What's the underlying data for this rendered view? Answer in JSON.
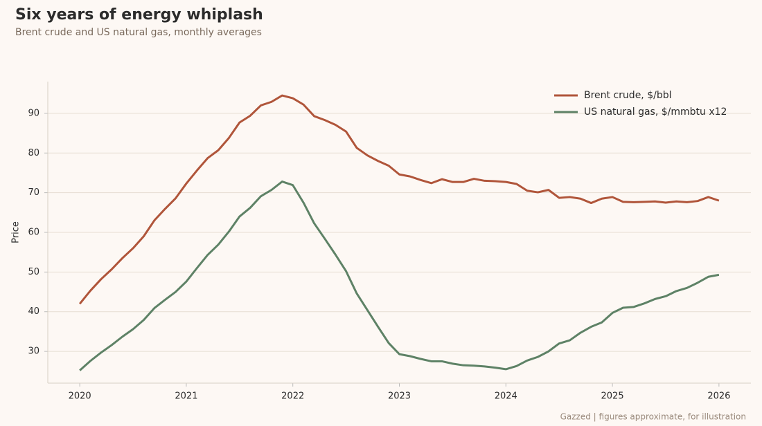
{
  "chart_data": {
    "type": "line",
    "title": "Six years of energy whiplash",
    "subtitle": "Brent crude and US natural gas, monthly averages",
    "ylabel": "Price",
    "footer": "Gazzed | figures approximate, for illustration",
    "x": [
      2020,
      2020.1,
      2020.2,
      2020.3,
      2020.4,
      2020.5,
      2020.6,
      2020.7,
      2020.8,
      2020.9,
      2021,
      2021.1,
      2021.2,
      2021.3,
      2021.4,
      2021.5,
      2021.6,
      2021.7,
      2021.8,
      2021.9,
      2022,
      2022.1,
      2022.2,
      2022.3,
      2022.4,
      2022.5,
      2022.6,
      2022.7,
      2022.8,
      2022.9,
      2023,
      2023.1,
      2023.2,
      2023.3,
      2023.4,
      2023.5,
      2023.6,
      2023.7,
      2023.8,
      2023.9,
      2024,
      2024.1,
      2024.2,
      2024.3,
      2024.4,
      2024.5,
      2024.6,
      2024.7,
      2024.8,
      2024.9,
      2025,
      2025.1,
      2025.2,
      2025.3,
      2025.4,
      2025.5,
      2025.6,
      2025.7,
      2025.8,
      2025.9,
      2026
    ],
    "series": [
      {
        "name": "Brent crude, $/bbl",
        "color": "#b0553a",
        "values": [
          42,
          45.3,
          48.2,
          50.7,
          53.5,
          56,
          59,
          63,
          65.9,
          68.6,
          72.3,
          75.6,
          78.7,
          80.7,
          83.8,
          87.7,
          89.4,
          92,
          92.9,
          94.5,
          93.8,
          92.2,
          89.3,
          88.3,
          87.1,
          85.4,
          81.3,
          79.4,
          78,
          76.8,
          74.6,
          74.1,
          73.2,
          72.4,
          73.4,
          72.7,
          72.7,
          73.5,
          73,
          72.9,
          72.7,
          72.2,
          70.5,
          70.1,
          70.7,
          68.7,
          68.9,
          68.5,
          67.4,
          68.5,
          68.9,
          67.7,
          67.6,
          67.7,
          67.8,
          67.5,
          67.8,
          67.6,
          67.9,
          68.9,
          68.0
        ]
      },
      {
        "name": "US natural gas, $/mmbtu x12",
        "color": "#5e8266",
        "values": [
          25.2,
          27.6,
          29.7,
          31.6,
          33.7,
          35.6,
          37.9,
          40.9,
          43,
          45,
          47.6,
          51,
          54.3,
          56.9,
          60.2,
          64,
          66.2,
          69.1,
          70.7,
          72.8,
          71.9,
          67.5,
          62.3,
          58.4,
          54.4,
          50.2,
          44.6,
          40.4,
          36.2,
          32.1,
          29.3,
          28.8,
          28.1,
          27.5,
          27.5,
          26.9,
          26.5,
          26.4,
          26.2,
          25.9,
          25.5,
          26.3,
          27.7,
          28.6,
          30,
          32,
          32.8,
          34.7,
          36.2,
          37.3,
          39.7,
          41,
          41.2,
          42.1,
          43.2,
          43.9,
          45.2,
          46,
          47.3,
          48.8,
          49.3
        ]
      }
    ],
    "xlim": [
      2019.7,
      2026.3
    ],
    "xticks": [
      2020,
      2021,
      2022,
      2023,
      2024,
      2025,
      2026
    ],
    "ylim": [
      22,
      98
    ],
    "yticks": [
      30,
      40,
      50,
      60,
      70,
      80,
      90
    ],
    "grid": true,
    "legend": "upper right"
  }
}
